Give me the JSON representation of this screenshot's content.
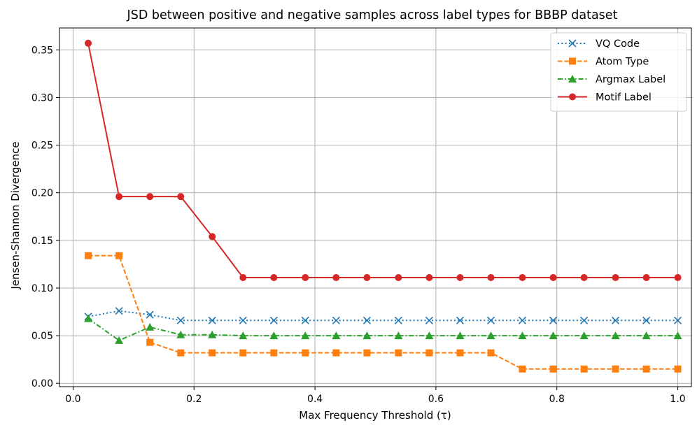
{
  "chart_data": {
    "type": "line",
    "title": "JSD between positive and negative samples across label types for BBBP dataset",
    "xlabel": "Max Frequency Threshold (τ)",
    "ylabel": "Jensen-Shannon Divergence",
    "xlim": [
      -0.0225,
      1.0225
    ],
    "ylim": [
      -0.0035,
      0.373
    ],
    "xticks": [
      0.0,
      0.2,
      0.4,
      0.6,
      0.8,
      1.0
    ],
    "xtick_labels": [
      "0.0",
      "0.2",
      "0.4",
      "0.6",
      "0.8",
      "1.0"
    ],
    "yticks": [
      0.0,
      0.05,
      0.1,
      0.15,
      0.2,
      0.25,
      0.3,
      0.35
    ],
    "ytick_labels": [
      "0.00",
      "0.05",
      "0.10",
      "0.15",
      "0.20",
      "0.25",
      "0.30",
      "0.35"
    ],
    "grid": true,
    "legend_position": "top-right",
    "x": [
      0.025,
      0.076,
      0.127,
      0.178,
      0.23,
      0.281,
      0.332,
      0.384,
      0.435,
      0.486,
      0.538,
      0.589,
      0.64,
      0.691,
      0.743,
      0.794,
      0.845,
      0.897,
      0.948,
      1.0
    ],
    "series": [
      {
        "name": "VQ Code",
        "color": "#1f77b4",
        "marker": "x",
        "linestyle": "dotted",
        "values": [
          0.07,
          0.076,
          0.072,
          0.066,
          0.066,
          0.066,
          0.066,
          0.066,
          0.066,
          0.066,
          0.066,
          0.066,
          0.066,
          0.066,
          0.066,
          0.066,
          0.066,
          0.066,
          0.066,
          0.066
        ]
      },
      {
        "name": "Atom Type",
        "color": "#ff7f0e",
        "marker": "square",
        "linestyle": "dashed",
        "values": [
          0.134,
          0.134,
          0.043,
          0.032,
          0.032,
          0.032,
          0.032,
          0.032,
          0.032,
          0.032,
          0.032,
          0.032,
          0.032,
          0.032,
          0.015,
          0.015,
          0.015,
          0.015,
          0.015,
          0.015
        ]
      },
      {
        "name": "Argmax Label",
        "color": "#2ca02c",
        "marker": "triangle",
        "linestyle": "dashdot",
        "values": [
          0.068,
          0.045,
          0.059,
          0.051,
          0.051,
          0.05,
          0.05,
          0.05,
          0.05,
          0.05,
          0.05,
          0.05,
          0.05,
          0.05,
          0.05,
          0.05,
          0.05,
          0.05,
          0.05,
          0.05
        ]
      },
      {
        "name": "Motif Label",
        "color": "#d62728",
        "marker": "circle",
        "linestyle": "solid",
        "values": [
          0.357,
          0.196,
          0.196,
          0.196,
          0.154,
          0.111,
          0.111,
          0.111,
          0.111,
          0.111,
          0.111,
          0.111,
          0.111,
          0.111,
          0.111,
          0.111,
          0.111,
          0.111,
          0.111,
          0.111
        ]
      }
    ]
  }
}
